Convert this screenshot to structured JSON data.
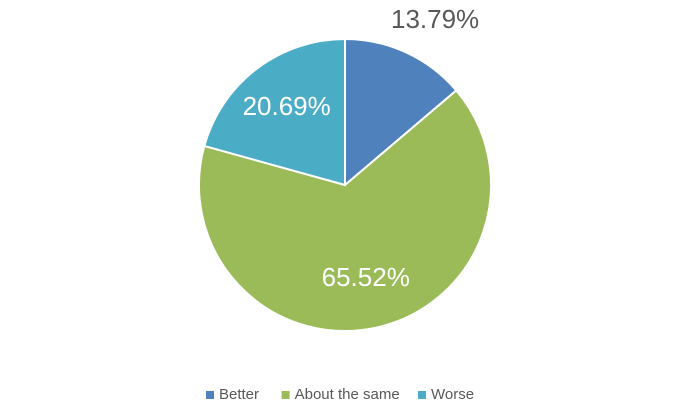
{
  "chart_data": {
    "type": "pie",
    "categories": [
      "Better",
      "About the same",
      "Worse"
    ],
    "values": [
      13.79,
      65.52,
      20.69
    ],
    "value_labels": [
      "13.79%",
      "65.52%",
      "20.69%"
    ],
    "colors": [
      "#4f81bd",
      "#9bbb59",
      "#4bacc6"
    ],
    "legend": "bottom"
  }
}
